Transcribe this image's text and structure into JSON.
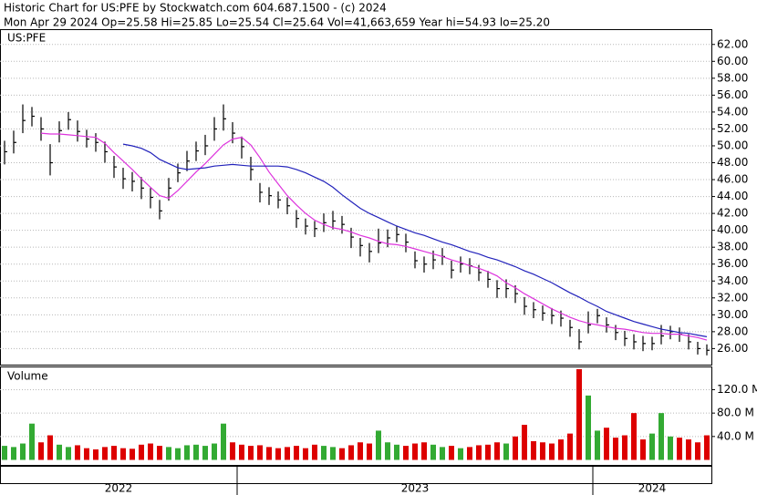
{
  "chart_data": {
    "type": "ohlc",
    "title": "Historic Chart for US:PFE by Stockwatch.com 604.687.1500 - (c) 2024",
    "subtitle": "Mon Apr 29 2024  Op=25.58  Hi=25.85  Lo=25.54  Cl=25.64  Vol=41,663,659  Year hi=54.93  lo=25.20",
    "symbol": "US:PFE",
    "volume_label": "Volume",
    "bar_color": "#000000",
    "close": [
      49.3,
      50.4,
      53,
      53.5,
      52,
      48,
      51.8,
      53.1,
      51.7,
      50.8,
      50.4,
      49.3,
      47.5,
      46.1,
      45.8,
      45,
      43.9,
      42.3,
      45,
      46.8,
      48.2,
      49.4,
      50,
      52,
      53.2,
      51.5,
      49.9,
      47.2,
      44.5,
      44.1,
      43.6,
      42.9,
      41.4,
      40.5,
      40.2,
      40.9,
      41.1,
      40.7,
      39.2,
      38.2,
      37.5,
      38.5,
      39.1,
      39.5,
      38.6,
      36.4,
      36,
      36.5,
      36.9,
      35.3,
      36,
      35.8,
      35,
      34.2,
      33.1,
      33.1,
      32.5,
      31,
      30.6,
      30.2,
      29.9,
      29.6,
      28.5,
      26.8,
      28.8,
      29.9,
      28.8,
      27.9,
      27.2,
      26.8,
      26.6,
      26.6,
      27.5,
      28,
      27.7,
      26.8,
      26,
      25.8
    ],
    "high": [
      50.6,
      51.8,
      54.9,
      54.6,
      53.4,
      50.2,
      52.9,
      54,
      53,
      51.9,
      51.5,
      50.5,
      48.8,
      47.4,
      46.9,
      46.3,
      45,
      43.6,
      46.2,
      47.9,
      49.4,
      50.5,
      51.3,
      53.4,
      54.9,
      52.8,
      51.1,
      48.7,
      45.6,
      45.1,
      44.6,
      43.9,
      42.4,
      41.4,
      41.1,
      42,
      42.3,
      41.7,
      40.3,
      39.1,
      38.5,
      40.2,
      40.1,
      40.5,
      39.6,
      37.5,
      36.9,
      37.6,
      37.9,
      36.4,
      36.9,
      36.7,
      35.9,
      35.2,
      34.1,
      34.2,
      33.5,
      32.1,
      31.5,
      31.1,
      30.8,
      30.5,
      29.4,
      28.3,
      30.4,
      30.7,
      29.7,
      28.8,
      28.1,
      27.7,
      27.5,
      27.4,
      28.8,
      28.7,
      28.5,
      27.7,
      26.8,
      26.5
    ],
    "low": [
      47.8,
      49.1,
      51.5,
      52.3,
      50.6,
      46.5,
      50.4,
      51.9,
      50.5,
      49.8,
      49.3,
      48,
      46.2,
      44.9,
      44.6,
      43.7,
      42.6,
      41.3,
      43.5,
      45.7,
      47,
      48.2,
      48.9,
      50.6,
      51.8,
      50.3,
      48.5,
      45.9,
      43.3,
      43,
      42.6,
      41.9,
      40.3,
      39.5,
      39.2,
      39.8,
      40.1,
      39.6,
      37.9,
      36.9,
      36.2,
      37.3,
      38,
      38.6,
      37.4,
      35.5,
      35,
      35.4,
      35.9,
      34.3,
      35,
      34.8,
      34,
      33.2,
      32,
      32,
      31.4,
      30,
      29.6,
      29.3,
      28.9,
      28.6,
      27.4,
      25.9,
      27.8,
      29,
      27.9,
      27,
      26.3,
      25.9,
      25.7,
      25.8,
      26.5,
      27.1,
      26.8,
      25.9,
      25.3,
      25.2
    ],
    "moving_averages": [
      {
        "color": "#dd33dd",
        "values": [
          null,
          null,
          null,
          null,
          51.5,
          51.4,
          51.4,
          51.3,
          51.2,
          51.1,
          51,
          50.3,
          49.2,
          48.2,
          47.2,
          46.1,
          45.1,
          44.1,
          43.8,
          44.7,
          45.8,
          46.9,
          47.9,
          49,
          50.1,
          50.8,
          51,
          50.1,
          48.6,
          46.9,
          45.5,
          44.1,
          43,
          42,
          41.2,
          40.7,
          40.3,
          40.1,
          39.8,
          39.4,
          39.1,
          38.7,
          38.4,
          38.3,
          38.1,
          37.8,
          37.5,
          37.2,
          36.9,
          36.5,
          36.2,
          35.8,
          35.5,
          35.1,
          34.6,
          33.8,
          33.2,
          32.5,
          31.9,
          31.3,
          30.7,
          30.2,
          29.7,
          29.3,
          29,
          28.8,
          28.6,
          28.4,
          28.3,
          28.1,
          27.9,
          27.8,
          27.8,
          27.7,
          27.7,
          27.5,
          27.3,
          27
        ]
      },
      {
        "color": "#2222bb",
        "values": [
          null,
          null,
          null,
          null,
          null,
          null,
          null,
          null,
          null,
          null,
          null,
          null,
          null,
          50.2,
          50,
          49.7,
          49.2,
          48.4,
          47.9,
          47.4,
          47.2,
          47.3,
          47.4,
          47.6,
          47.7,
          47.8,
          47.7,
          47.6,
          47.6,
          47.6,
          47.6,
          47.5,
          47.2,
          46.8,
          46.3,
          45.8,
          45.1,
          44.2,
          43.4,
          42.6,
          42,
          41.5,
          41,
          40.5,
          40.1,
          39.7,
          39.4,
          39,
          38.6,
          38.3,
          37.9,
          37.5,
          37.2,
          36.8,
          36.5,
          36.1,
          35.7,
          35.2,
          34.8,
          34.3,
          33.8,
          33.2,
          32.6,
          32.1,
          31.5,
          31,
          30.4,
          30,
          29.6,
          29.2,
          28.9,
          28.6,
          28.3,
          28.1,
          27.9,
          27.8,
          27.6,
          27.4
        ]
      }
    ],
    "volume": [
      24,
      22,
      28,
      62,
      30,
      42,
      26,
      22,
      25,
      20,
      18,
      22,
      24,
      20,
      19,
      26,
      28,
      24,
      22,
      20,
      25,
      26,
      24,
      28,
      62,
      30,
      26,
      24,
      25,
      22,
      20,
      22,
      24,
      20,
      26,
      24,
      22,
      20,
      25,
      30,
      28,
      50,
      30,
      26,
      24,
      28,
      30,
      26,
      22,
      24,
      20,
      22,
      25,
      26,
      30,
      28,
      40,
      60,
      32,
      30,
      28,
      35,
      45,
      155,
      110,
      50,
      55,
      38,
      42,
      80,
      35,
      45,
      80,
      40,
      38,
      35,
      30,
      42
    ],
    "volume_up_color": "#33aa33",
    "volume_down_color": "#dd0000",
    "ylim": [
      24.1,
      63.7
    ],
    "yticks": [
      {
        "value": 26,
        "label": "26.00"
      },
      {
        "value": 28,
        "label": "28.00"
      },
      {
        "value": 30,
        "label": "30.00"
      },
      {
        "value": 32,
        "label": "32.00"
      },
      {
        "value": 34,
        "label": "34.00"
      },
      {
        "value": 36,
        "label": "36.00"
      },
      {
        "value": 38,
        "label": "38.00"
      },
      {
        "value": 40,
        "label": "40.00"
      },
      {
        "value": 42,
        "label": "42.00"
      },
      {
        "value": 44,
        "label": "44.00"
      },
      {
        "value": 46,
        "label": "46.00"
      },
      {
        "value": 48,
        "label": "48.00"
      },
      {
        "value": 50,
        "label": "50.00"
      },
      {
        "value": 52,
        "label": "52.00"
      },
      {
        "value": 54,
        "label": "54.00"
      },
      {
        "value": 56,
        "label": "56.00"
      },
      {
        "value": 58,
        "label": "58.00"
      },
      {
        "value": 60,
        "label": "60.00"
      },
      {
        "value": 62,
        "label": "62.00"
      }
    ],
    "y2lim": [
      0,
      155
    ],
    "y2ticks": [
      {
        "value": 40,
        "label": "40.0 M"
      },
      {
        "value": 80,
        "label": "80.0 M"
      },
      {
        "value": 120,
        "label": "120.0 M"
      }
    ],
    "grid": true,
    "year_labels": [
      "2022",
      "2023",
      "2024"
    ],
    "year_starts": [
      26,
      65
    ]
  }
}
